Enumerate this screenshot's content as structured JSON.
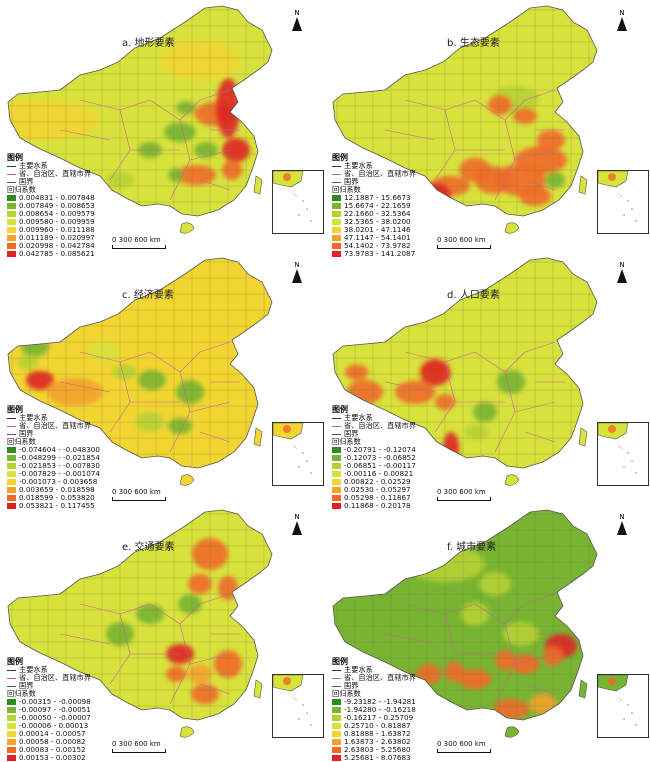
{
  "north_label": "N",
  "legend_title": "图例",
  "legend_boundary": "省、自治区、直辖市界",
  "legend_coast": "国界",
  "scale_label": "0   300  600 km",
  "colors": [
    "#2e8b22",
    "#77b432",
    "#b6d233",
    "#d8e23c",
    "#f2d531",
    "#f4a12d",
    "#ef6a28",
    "#e02121"
  ],
  "panels": [
    {
      "title": "a. 地形要素",
      "legend_sub": "主要水系",
      "legend_head": "回归系数",
      "classes": [
        "0.004831 - 0.007848",
        "0.007849 - 0.008653",
        "0.008654 - 0.009579",
        "0.009580 - 0.009959",
        "0.009960 - 0.011188",
        "0.011189 - 0.020997",
        "0.020998 - 0.042784",
        "0.042785 - 0.085621"
      ]
    },
    {
      "title": "b. 生态要素",
      "legend_sub": "主要水系",
      "legend_head": "回归系数",
      "classes": [
        "12.1887 - 15.6673",
        "15.6674 - 22.1659",
        "22.1660 - 32.5364",
        "32.5365 - 38.0200",
        "38.0201 - 47.1146",
        "47.1147 - 54.1401",
        "54.1402 - 73.9782",
        "73.9783 - 141.2087"
      ]
    },
    {
      "title": "c. 经济要素",
      "legend_sub": "主要水系",
      "legend_head": "回归系数",
      "classes": [
        "-0.074604 - -0.048300",
        "-0.048299 - -0.021854",
        "-0.021853 - -0.007830",
        "-0.007829 - -0.001074",
        "-0.001073 - 0.003658",
        "0.003659 - 0.018598",
        "0.018599 - 0.053820",
        "0.053821 - 0.117455"
      ]
    },
    {
      "title": "d. 人口要素",
      "legend_sub": "主要水系",
      "legend_head": "回归系数",
      "classes": [
        "-0.20791 - -0.12074",
        "-0.12073 - -0.06852",
        "-0.06851 - -0.00117",
        "-0.00116 - 0.00821",
        "0.00822 - 0.02529",
        "0.02530 - 0.05297",
        "0.05298 - 0.11867",
        "0.11868 - 0.20178"
      ]
    },
    {
      "title": "e. 交通要素",
      "legend_sub": "主要水系",
      "legend_head": "回归系数",
      "classes": [
        "-0.00315 - -0.00098",
        "-0.00097 - -0.00051",
        "-0.00050 - -0.00007",
        "-0.00006 - 0.00013",
        "0.00014 - 0.00057",
        "0.00058 - 0.00082",
        "0.00083 - 0.00152",
        "0.00153 - 0.00302"
      ]
    },
    {
      "title": "f. 城市要素",
      "legend_sub": "主要水系",
      "legend_head": "回归系数",
      "classes": [
        "-9.23182 - -1.94281",
        "-1.94280 - -0.16218",
        "-0.16217 - 0.25709",
        "0.25710 - 0.81887",
        "0.81888 - 1.63872",
        "1.63873 - 2.63802",
        "2.63803 - 5.25680",
        "5.25681 - 8.07683"
      ]
    }
  ]
}
